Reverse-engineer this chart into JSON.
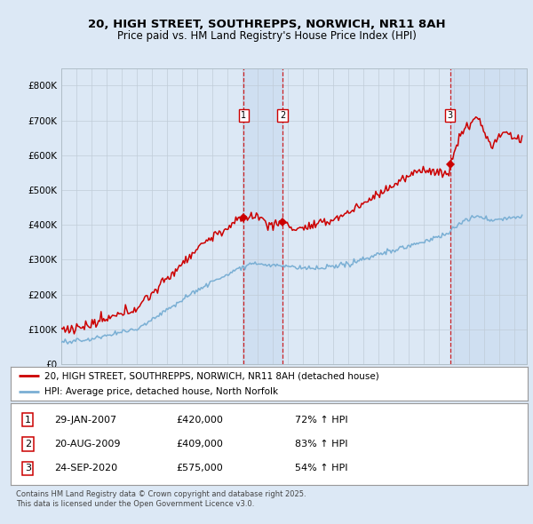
{
  "title1": "20, HIGH STREET, SOUTHREPPS, NORWICH, NR11 8AH",
  "title2": "Price paid vs. HM Land Registry's House Price Index (HPI)",
  "bg_color": "#dce8f5",
  "plot_bg": "#dce8f5",
  "red_color": "#cc0000",
  "blue_color": "#7aafd4",
  "sale_dates": [
    2007.08,
    2009.64,
    2020.73
  ],
  "sale_prices": [
    420000,
    409000,
    575000
  ],
  "sale_labels": [
    "1",
    "2",
    "3"
  ],
  "legend_line1": "20, HIGH STREET, SOUTHREPPS, NORWICH, NR11 8AH (detached house)",
  "legend_line2": "HPI: Average price, detached house, North Norfolk",
  "table_data": [
    [
      "1",
      "29-JAN-2007",
      "£420,000",
      "72% ↑ HPI"
    ],
    [
      "2",
      "20-AUG-2009",
      "£409,000",
      "83% ↑ HPI"
    ],
    [
      "3",
      "24-SEP-2020",
      "£575,000",
      "54% ↑ HPI"
    ]
  ],
  "footer": "Contains HM Land Registry data © Crown copyright and database right 2025.\nThis data is licensed under the Open Government Licence v3.0.",
  "ylim_max": 850000,
  "xmin": 1995.0,
  "xmax": 2025.8,
  "yticks": [
    0,
    100000,
    200000,
    300000,
    400000,
    500000,
    600000,
    700000,
    800000
  ],
  "ylabels": [
    "£0",
    "£100K",
    "£200K",
    "£300K",
    "£400K",
    "£500K",
    "£600K",
    "£700K",
    "£800K"
  ]
}
